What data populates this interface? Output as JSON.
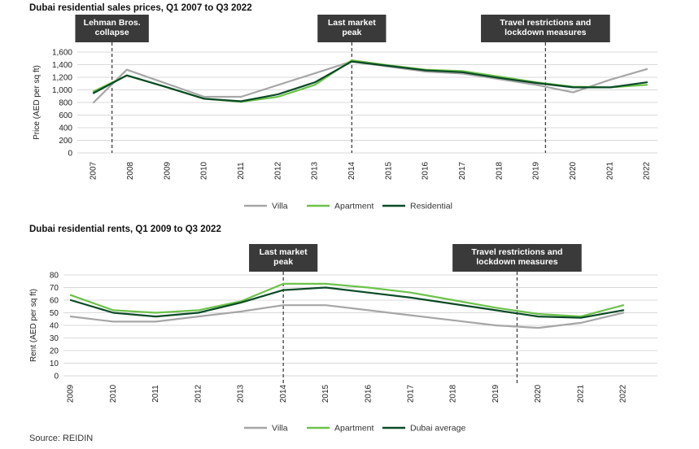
{
  "source": "Source: REIDIN",
  "chart_data": [
    {
      "type": "line",
      "title": "Dubai residential sales prices, Q1 2007 to Q3 2022",
      "ylabel": "Price (AED per sq ft)",
      "xlabel": "",
      "ylim": [
        0,
        1600
      ],
      "yticks": [
        "0",
        "200",
        "400",
        "600",
        "800",
        "1,000",
        "1,200",
        "1,400",
        "1,600"
      ],
      "xticks": [
        "2007",
        "2008",
        "2009",
        "2010",
        "2011",
        "2012",
        "2013",
        "2014",
        "2015",
        "2016",
        "2017",
        "2018",
        "2019",
        "2020",
        "2021",
        "2022"
      ],
      "grid": true,
      "legend": "bottom",
      "annotations": [
        {
          "label_lines": [
            "Lehman Bros.",
            "collapse"
          ],
          "x": 2007.5
        },
        {
          "label_lines": [
            "Last market",
            "peak"
          ],
          "x": 2014.0
        },
        {
          "label_lines": [
            "Travel restrictions and",
            "lockdown measures"
          ],
          "x": 2019.25
        }
      ],
      "series": [
        {
          "name": "Villa",
          "color": "#a6a6a6",
          "x": [
            2007.0,
            2007.9,
            2010.0,
            2011.0,
            2014.0,
            2016.0,
            2017.0,
            2018.0,
            2019.0,
            2020.0,
            2021.0,
            2022.0
          ],
          "values": [
            800,
            1320,
            890,
            890,
            1450,
            1290,
            1260,
            1170,
            1080,
            960,
            1160,
            1330
          ]
        },
        {
          "name": "Apartment",
          "color": "#6cc24a",
          "x": [
            2007.0,
            2007.9,
            2009.0,
            2010.0,
            2011.0,
            2012.0,
            2013.0,
            2014.0,
            2015.0,
            2016.0,
            2017.0,
            2018.0,
            2019.0,
            2020.0,
            2021.0,
            2022.0
          ],
          "values": [
            975,
            1230,
            1040,
            860,
            810,
            890,
            1080,
            1470,
            1390,
            1320,
            1300,
            1210,
            1120,
            1050,
            1040,
            1080
          ]
        },
        {
          "name": "Residential",
          "color": "#0a4a26",
          "x": [
            2007.0,
            2007.9,
            2009.0,
            2010.0,
            2011.0,
            2012.0,
            2013.0,
            2014.0,
            2015.0,
            2016.0,
            2017.0,
            2018.0,
            2019.0,
            2020.0,
            2021.0,
            2022.0
          ],
          "values": [
            950,
            1230,
            1040,
            860,
            820,
            930,
            1120,
            1450,
            1380,
            1310,
            1280,
            1190,
            1110,
            1040,
            1040,
            1120
          ]
        }
      ]
    },
    {
      "type": "line",
      "title": "Dubai residential rents, Q1 2009 to Q3 2022",
      "ylabel": "Rent (AED per sq ft)",
      "xlabel": "",
      "ylim": [
        0,
        80
      ],
      "yticks": [
        "0",
        "10",
        "20",
        "30",
        "40",
        "50",
        "60",
        "70",
        "80"
      ],
      "xticks": [
        "2009",
        "2010",
        "2011",
        "2012",
        "2013",
        "2014",
        "2015",
        "2016",
        "2017",
        "2018",
        "2019",
        "2020",
        "2021",
        "2022"
      ],
      "grid": true,
      "legend": "bottom",
      "annotations": [
        {
          "label_lines": [
            "Last market",
            "peak"
          ],
          "x": 2014.0
        },
        {
          "label_lines": [
            "Travel restrictions and",
            "lockdown measures"
          ],
          "x": 2019.5
        }
      ],
      "series": [
        {
          "name": "Villa",
          "color": "#a6a6a6",
          "x": [
            2009.0,
            2010.0,
            2011.0,
            2012.0,
            2013.0,
            2014.0,
            2015.0,
            2016.0,
            2017.0,
            2018.0,
            2019.0,
            2020.0,
            2021.0,
            2022.0
          ],
          "values": [
            47,
            43,
            43,
            47,
            51,
            56,
            56,
            52,
            48,
            44,
            40,
            38,
            42,
            50
          ]
        },
        {
          "name": "Apartment",
          "color": "#6cc24a",
          "x": [
            2009.0,
            2010.0,
            2011.0,
            2012.0,
            2013.0,
            2014.0,
            2015.0,
            2016.0,
            2017.0,
            2018.0,
            2019.0,
            2020.0,
            2021.0,
            2022.0
          ],
          "values": [
            64,
            52,
            50,
            52,
            59,
            73,
            73,
            70,
            66,
            60,
            54,
            49,
            47,
            56
          ]
        },
        {
          "name": "Dubai average",
          "color": "#0a4a26",
          "x": [
            2009.0,
            2010.0,
            2011.0,
            2012.0,
            2013.0,
            2014.0,
            2015.0,
            2016.0,
            2017.0,
            2018.0,
            2019.0,
            2020.0,
            2021.0,
            2022.0
          ],
          "values": [
            60,
            50,
            47,
            50,
            58,
            68,
            70,
            66,
            62,
            57,
            52,
            47,
            46,
            52
          ]
        }
      ]
    }
  ]
}
